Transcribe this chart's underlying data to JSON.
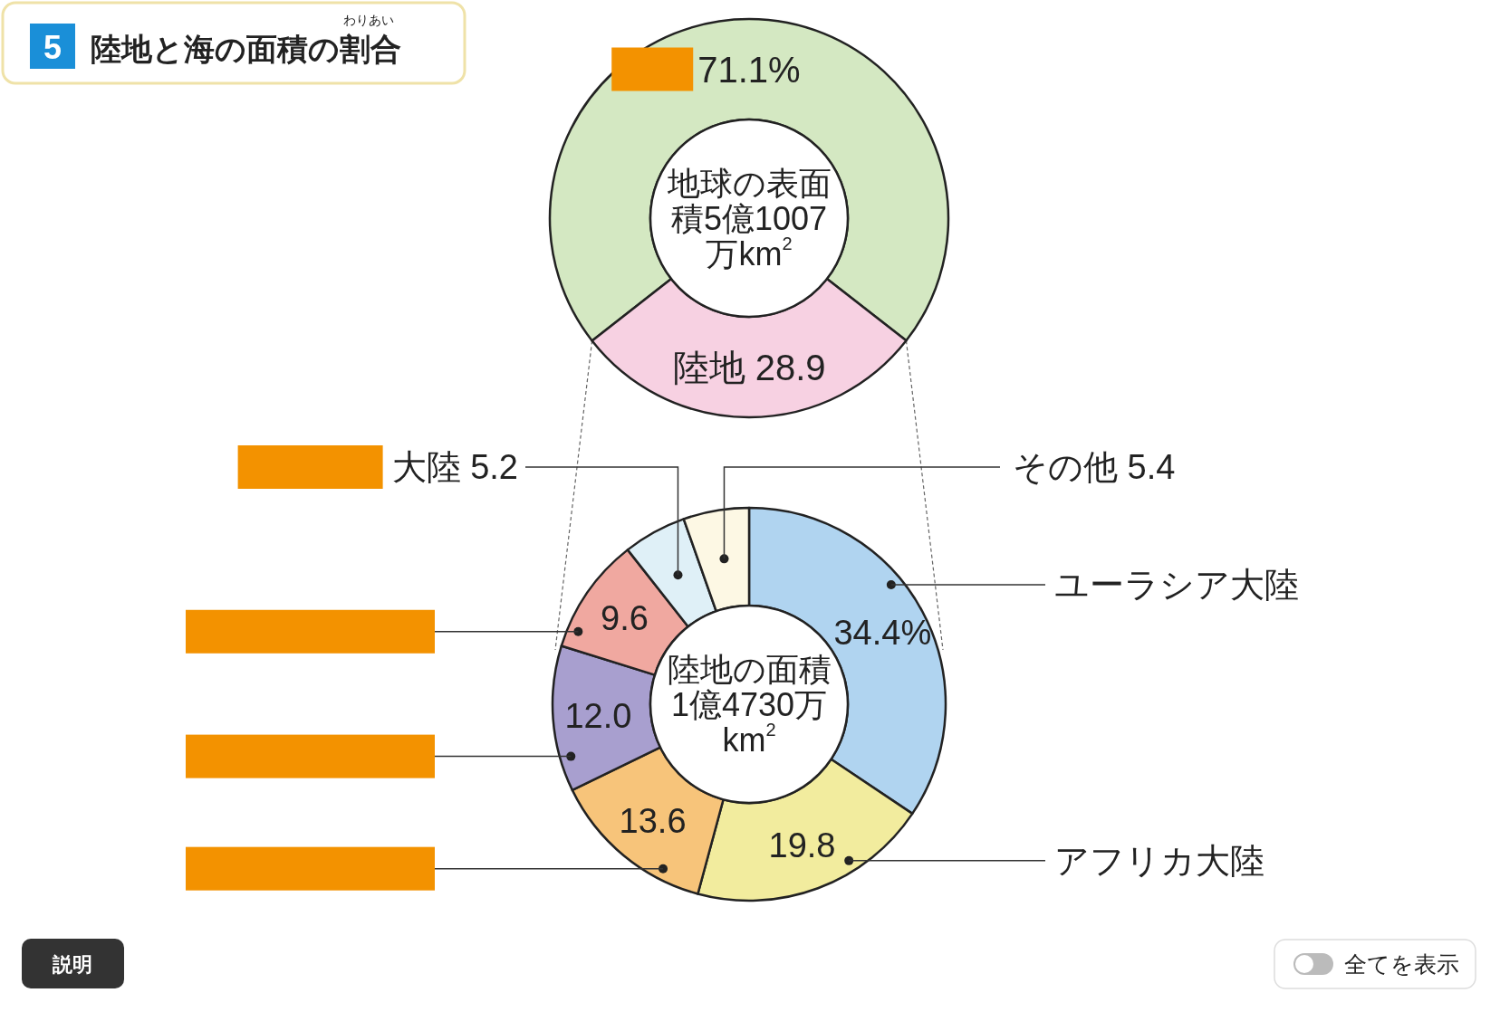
{
  "chart_data": [
    {
      "type": "donut",
      "title": "陸地と海の面積の割合",
      "categories": [
        null,
        "陸地"
      ],
      "values": [
        71.1,
        28.9
      ],
      "colors": [
        "#d4e8c2",
        "#f7d1e2"
      ],
      "value_labels": [
        "71.1%",
        "28.9"
      ],
      "annotations": [
        "地球の表面積5億1007万km$^{2}$",
        "5",
        "わりあい"
      ]
    },
    {
      "type": "donut",
      "categories": [
        "ユーラシア大陸",
        "アフリカ大陸",
        null,
        null,
        null,
        "大陸",
        "その他"
      ],
      "values": [
        34.4,
        19.8,
        13.6,
        12.0,
        9.6,
        5.2,
        5.4
      ],
      "colors": [
        "#b0d4f0",
        "#f2ec9e",
        "#f7c47a",
        "#a89fcf",
        "#f0a8a0",
        "#dff0f7",
        "#fdf8e4"
      ],
      "value_labels": [
        "34.4%",
        "19.8",
        "13.6",
        "12.0",
        "9.6",
        "5.2",
        "5.4"
      ],
      "annotations": [
        "陸地の面積1億4730万km$^{2}$",
        "説明",
        "全てを表示"
      ]
    }
  ]
}
